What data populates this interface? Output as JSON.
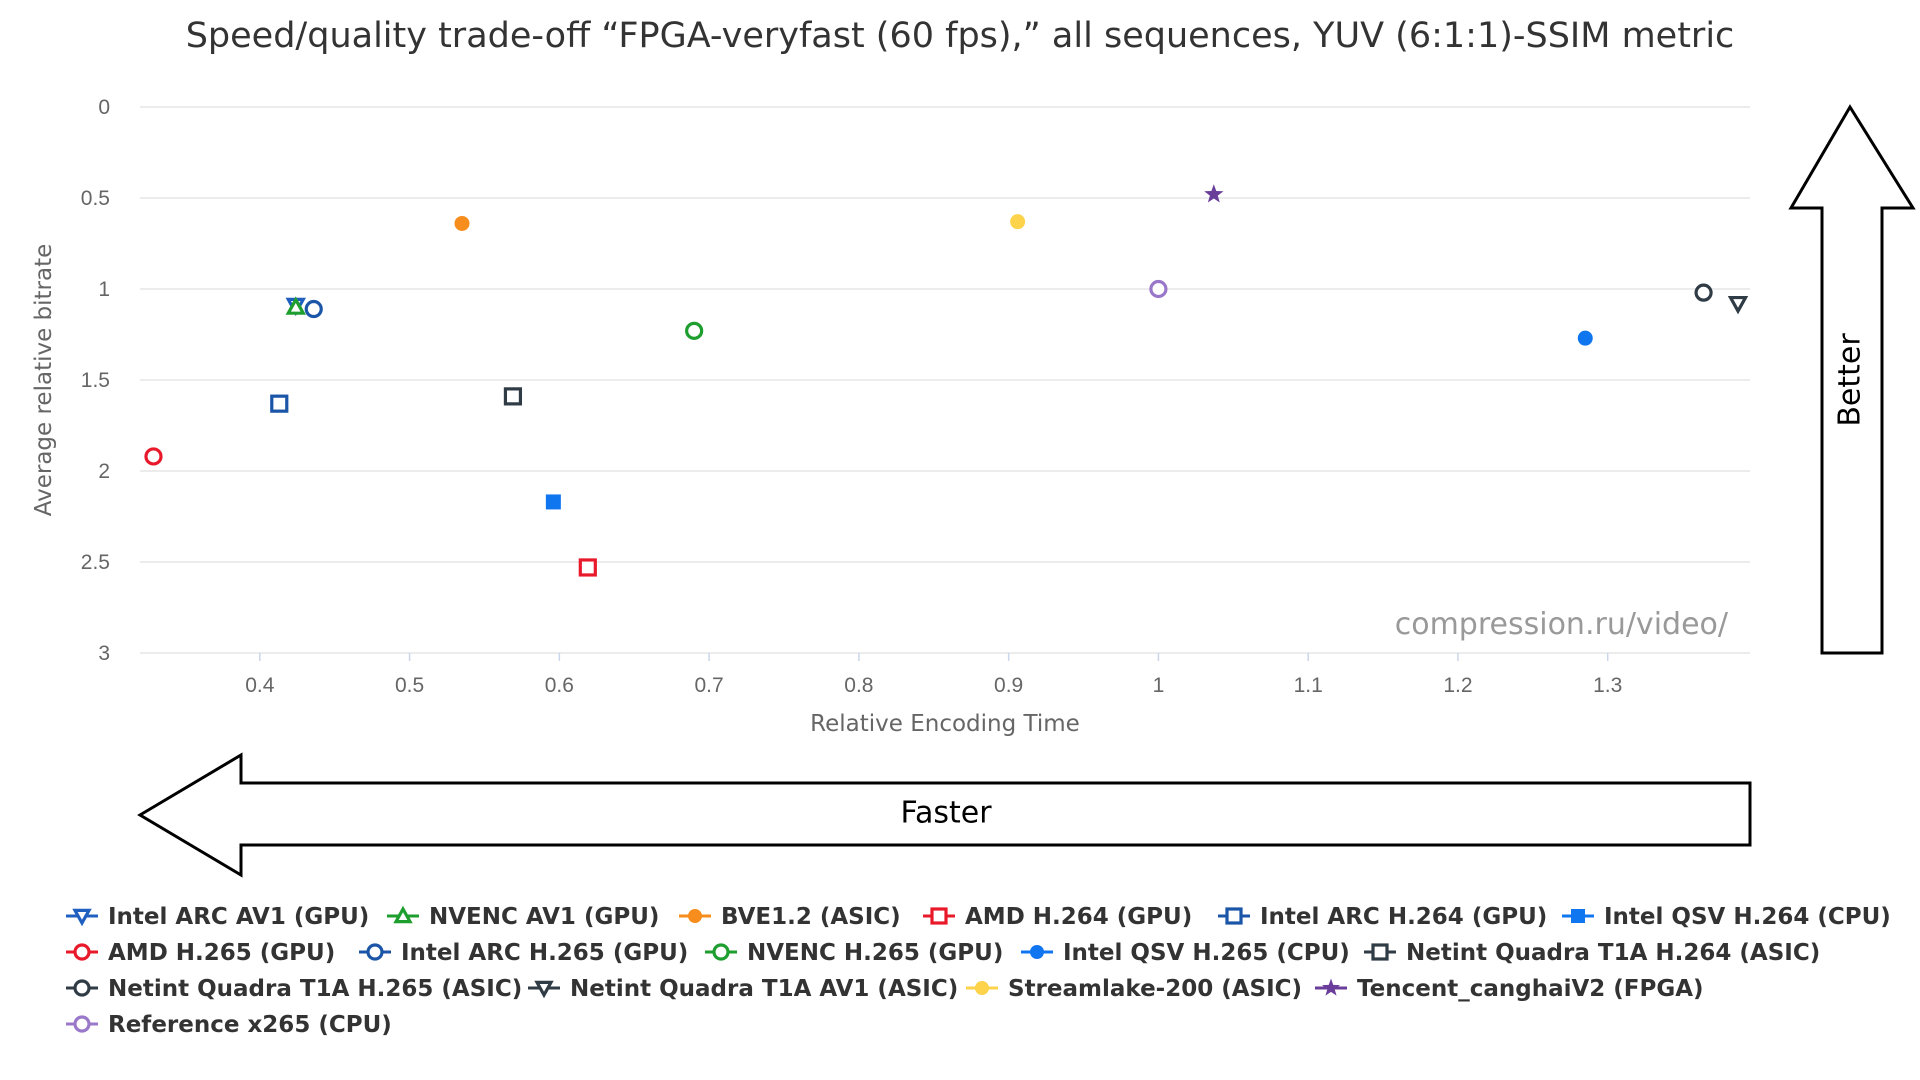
{
  "chart_data": {
    "type": "scatter",
    "title": "Speed/quality trade-off “FPGA-veryfast (60 fps),” all sequences, YUV (6:1:1)-SSIM metric",
    "xlabel": "Relative Encoding Time",
    "ylabel": "Average relative bitrate",
    "xlim": [
      0.32,
      1.395
    ],
    "ylim": [
      0,
      3
    ],
    "y_reversed": true,
    "x_ticks": [
      "0.4",
      "0.5",
      "0.6",
      "0.7",
      "0.8",
      "0.9",
      "1",
      "1.1",
      "1.2",
      "1.3"
    ],
    "y_ticks": [
      "0",
      "0.5",
      "1",
      "1.5",
      "2",
      "2.5",
      "3"
    ],
    "grid": true,
    "legend_position": "bottom",
    "series": [
      {
        "name": "Intel ARC AV1 (GPU)",
        "color": "#1f5fbf",
        "marker": "triangle-down",
        "filled": false,
        "points": [
          [
            0.424,
            1.09
          ]
        ]
      },
      {
        "name": "NVENC AV1 (GPU)",
        "color": "#1e9e2e",
        "marker": "triangle",
        "filled": false,
        "points": [
          [
            0.424,
            1.1
          ]
        ]
      },
      {
        "name": "BVE1.2 (ASIC)",
        "color": "#f68d1c",
        "marker": "circle",
        "filled": true,
        "points": [
          [
            0.535,
            0.64
          ]
        ]
      },
      {
        "name": "AMD H.264 (GPU)",
        "color": "#e8192a",
        "marker": "square",
        "filled": false,
        "points": [
          [
            0.619,
            2.53
          ]
        ]
      },
      {
        "name": "Intel ARC H.264 (GPU)",
        "color": "#1a55a8",
        "marker": "square",
        "filled": false,
        "points": [
          [
            0.413,
            1.63
          ]
        ]
      },
      {
        "name": "Intel QSV H.264 (CPU)",
        "color": "#1076f0",
        "marker": "square",
        "filled": true,
        "points": [
          [
            0.596,
            2.17
          ]
        ]
      },
      {
        "name": "AMD H.265 (GPU)",
        "color": "#e8192a",
        "marker": "circle",
        "filled": false,
        "points": [
          [
            0.329,
            1.92
          ]
        ]
      },
      {
        "name": "Intel ARC H.265 (GPU)",
        "color": "#1a55a8",
        "marker": "circle",
        "filled": false,
        "points": [
          [
            0.436,
            1.11
          ]
        ]
      },
      {
        "name": "NVENC H.265 (GPU)",
        "color": "#1e9e2e",
        "marker": "circle",
        "filled": false,
        "points": [
          [
            0.69,
            1.23
          ]
        ]
      },
      {
        "name": "Intel QSV H.265 (CPU)",
        "color": "#1076f0",
        "marker": "circle",
        "filled": true,
        "points": [
          [
            1.285,
            1.27
          ]
        ]
      },
      {
        "name": "Netint Quadra T1A H.264 (ASIC)",
        "color": "#2f3b45",
        "marker": "square",
        "filled": false,
        "points": [
          [
            0.569,
            1.59
          ]
        ]
      },
      {
        "name": "Netint Quadra T1A H.265 (ASIC)",
        "color": "#2f3b45",
        "marker": "circle",
        "filled": false,
        "points": [
          [
            1.364,
            1.02
          ]
        ]
      },
      {
        "name": "Netint Quadra T1A AV1 (ASIC)",
        "color": "#2f3b45",
        "marker": "triangle-down",
        "filled": false,
        "points": [
          [
            1.387,
            1.08
          ]
        ]
      },
      {
        "name": "Streamlake-200 (ASIC)",
        "color": "#fcd34a",
        "marker": "circle",
        "filled": true,
        "points": [
          [
            0.906,
            0.63
          ]
        ]
      },
      {
        "name": "Tencent_canghaiV2 (FPGA)",
        "color": "#6a3d9a",
        "marker": "star",
        "filled": true,
        "points": [
          [
            1.037,
            0.48
          ]
        ]
      },
      {
        "name": "Reference x265 (CPU)",
        "color": "#9a78c9",
        "marker": "circle",
        "filled": false,
        "points": [
          [
            1.0,
            1.0
          ]
        ]
      }
    ]
  },
  "annotations": {
    "watermark": "compression.ru/video/",
    "arrow_right_label": "Better",
    "arrow_bottom_label": "Faster"
  }
}
